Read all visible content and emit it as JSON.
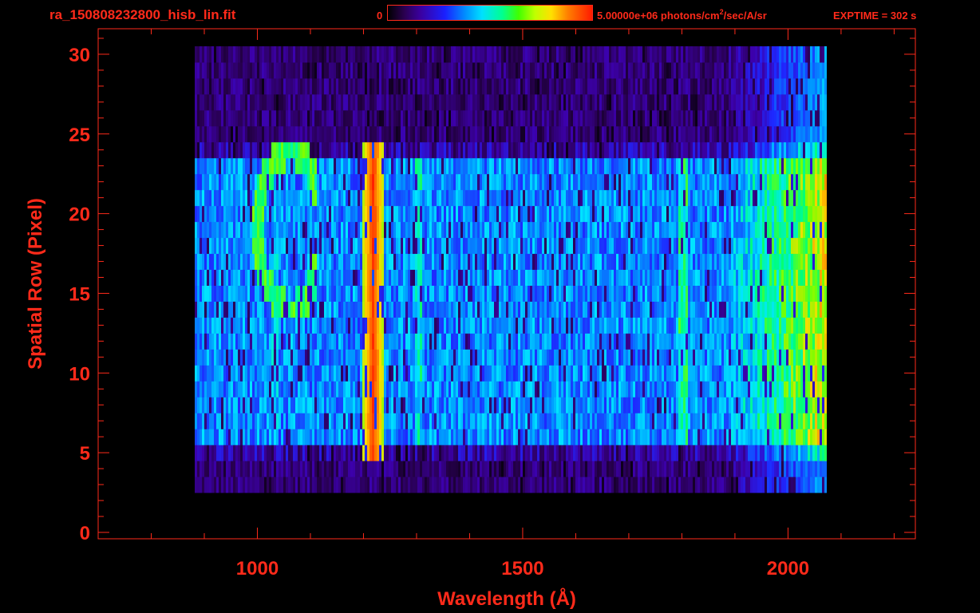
{
  "header": {
    "file_name": "ra_150808232800_hisb_lin.fit",
    "colorbar_min": "0",
    "colorbar_max_prefix": "5.00000e+06 photons/cm",
    "colorbar_max_sup": "2",
    "colorbar_max_suffix": "/sec/A/sr",
    "exptime": "EXPTIME = 302 s"
  },
  "colors": {
    "axis": "#ff2a1a",
    "background": "#000000"
  },
  "chart_data": {
    "type": "heatmap",
    "title": "",
    "xlabel": "Wavelength (Å)",
    "ylabel": "Spatial Row (Pixel)",
    "xlim": [
      700,
      2240
    ],
    "ylim": [
      -0.4,
      31.6
    ],
    "x_ticks": [
      1000,
      1500,
      2000
    ],
    "x_tick_labels": [
      "1000",
      "1500",
      "2000"
    ],
    "y_ticks": [
      0,
      5,
      10,
      15,
      20,
      25,
      30
    ],
    "y_tick_labels": [
      "0",
      "5",
      "10",
      "15",
      "20",
      "25",
      "30"
    ],
    "colorbar": {
      "min": 0,
      "max": 5000000,
      "unit": "photons/cm^2/sec/A/sr",
      "colormap": [
        "#000000",
        "#3a00a0",
        "#1a20ff",
        "#00c0ff",
        "#00ff80",
        "#c0ff00",
        "#ff8000",
        "#ff1a00"
      ]
    },
    "features": [
      {
        "name": "detector signal extent",
        "x_range": [
          880,
          2070
        ],
        "rows": [
          3,
          30
        ]
      },
      {
        "name": "bright band",
        "x_range": [
          880,
          2060
        ],
        "rows": [
          6,
          23
        ]
      },
      {
        "name": "bright emission line",
        "x": 1216,
        "rows": [
          5,
          24
        ]
      },
      {
        "name": "arc feature",
        "x_range": [
          990,
          1100
        ],
        "rows": [
          12,
          24
        ]
      }
    ]
  }
}
